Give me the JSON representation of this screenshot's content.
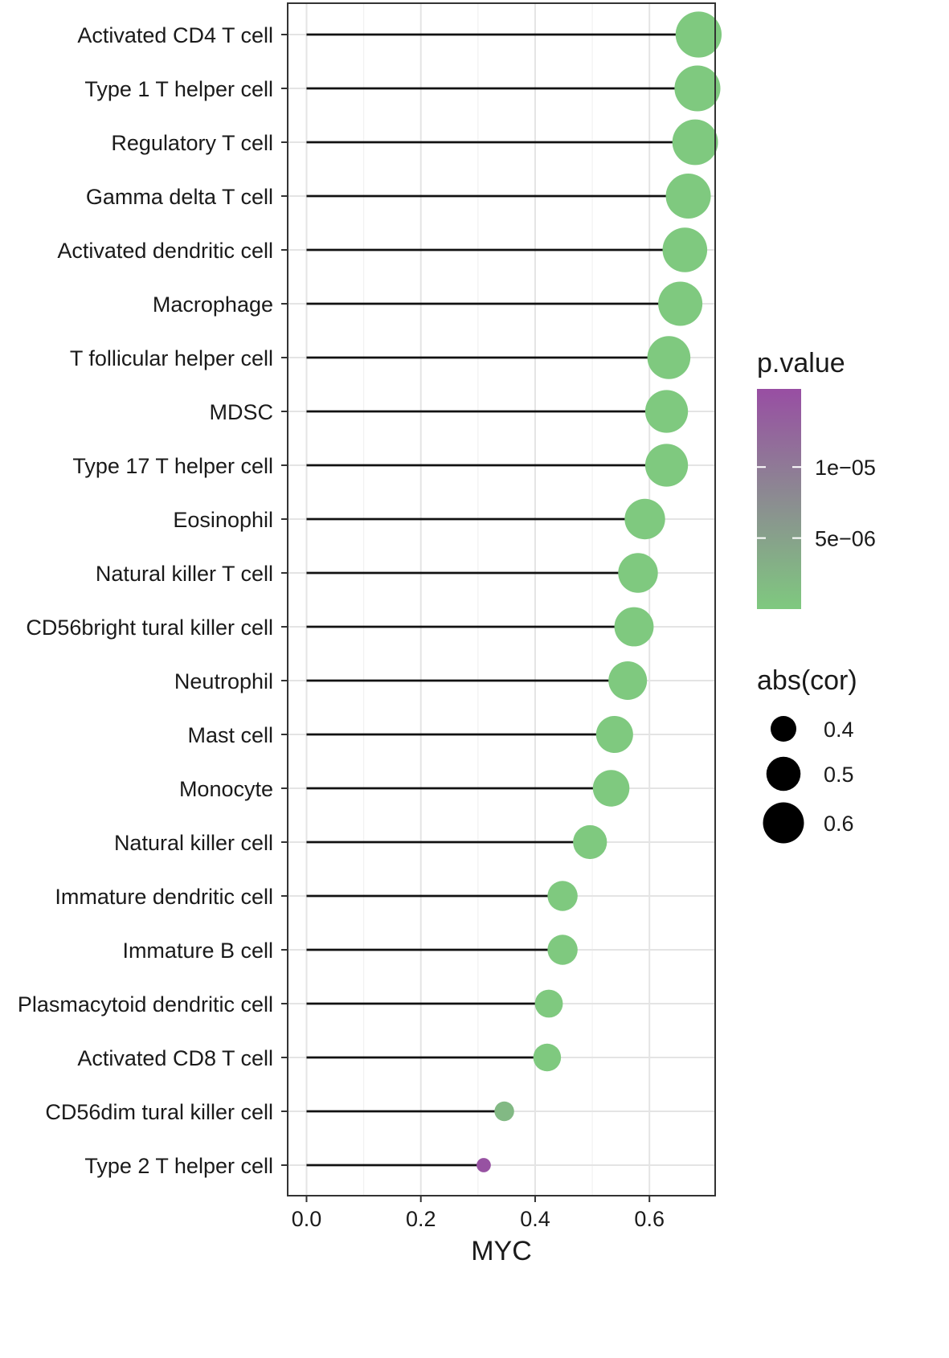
{
  "chart_data": {
    "type": "lollipop",
    "xlabel": "MYC",
    "x_ticks": [
      0.0,
      0.2,
      0.4,
      0.6
    ],
    "x_tick_labels": [
      "0.0",
      "0.2",
      "0.4",
      "0.6"
    ],
    "xlim": [
      -0.033,
      0.715
    ],
    "categories": [
      "Activated CD4 T cell",
      "Type 1 T helper cell",
      "Regulatory T cell",
      "Gamma delta T cell",
      "Activated dendritic cell",
      "Macrophage",
      "T follicular helper cell",
      "MDSC",
      "Type 17 T helper cell",
      "Eosinophil",
      "Natural killer T cell",
      "CD56bright tural killer cell",
      "Neutrophil",
      "Mast cell",
      "Monocyte",
      "Natural killer cell",
      "Immature dendritic cell",
      "Immature  B cell",
      "Plasmacytoid dendritic cell",
      "Activated CD8 T cell",
      "CD56dim tural killer cell",
      "Type 2 T helper cell"
    ],
    "values": [
      0.686,
      0.684,
      0.68,
      0.668,
      0.662,
      0.654,
      0.634,
      0.63,
      0.63,
      0.592,
      0.58,
      0.573,
      0.562,
      0.539,
      0.533,
      0.496,
      0.448,
      0.448,
      0.424,
      0.421,
      0.346,
      0.31
    ],
    "p_values": [
      0,
      0,
      0,
      0,
      0,
      0,
      0,
      0,
      0,
      0,
      0,
      0,
      0,
      0,
      0,
      0,
      0,
      0,
      0,
      0,
      2e-06,
      1.5e-05
    ],
    "grid": true,
    "legends": [
      {
        "title": "p.value",
        "type": "colorbar",
        "range": [
          0,
          1.55e-05
        ],
        "ticks": [
          5e-06,
          1e-05
        ],
        "tick_labels": [
          "5e−06",
          "1e−05"
        ],
        "colors": [
          "#7fc97f",
          "#984ea3"
        ]
      },
      {
        "title": "abs(cor)",
        "type": "size",
        "values": [
          0.4,
          0.5,
          0.6
        ],
        "labels": [
          "0.4",
          "0.5",
          "0.6"
        ]
      }
    ],
    "legend_position": "right"
  }
}
